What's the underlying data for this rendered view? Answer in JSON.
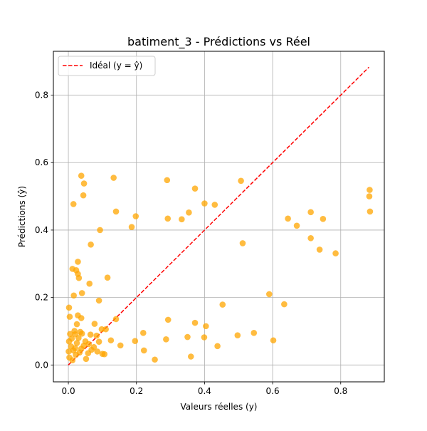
{
  "chart_data": {
    "type": "scatter",
    "title": "batiment_3 - Prédictions vs Réel",
    "xlabel": "Valeurs réelles (y)",
    "ylabel": "Prédictions (ŷ)",
    "xlim": [
      -0.044,
      0.928
    ],
    "ylim": [
      -0.05,
      0.93
    ],
    "xticks": [
      0.0,
      0.2,
      0.4,
      0.6,
      0.8
    ],
    "yticks": [
      0.0,
      0.2,
      0.4,
      0.6,
      0.8
    ],
    "xtick_labels": [
      "0.0",
      "0.2",
      "0.4",
      "0.6",
      "0.8"
    ],
    "ytick_labels": [
      "0.0",
      "0.2",
      "0.4",
      "0.6",
      "0.8"
    ],
    "grid": true,
    "legend": {
      "position": "top-left",
      "entries": [
        {
          "label": "Idéal (y = ŷ)",
          "style": "dashed-line",
          "color": "#ff0000"
        }
      ]
    },
    "ideal_line": {
      "x": [
        0.0,
        0.883
      ],
      "y": [
        0.0,
        0.883
      ],
      "color": "#ff0000",
      "dash": true
    },
    "points_color": "#ffa500",
    "points": [
      {
        "x": 0.038,
        "y": 0.561
      },
      {
        "x": 0.133,
        "y": 0.555
      },
      {
        "x": 0.046,
        "y": 0.538
      },
      {
        "x": 0.29,
        "y": 0.548
      },
      {
        "x": 0.507,
        "y": 0.546
      },
      {
        "x": 0.372,
        "y": 0.523
      },
      {
        "x": 0.044,
        "y": 0.503
      },
      {
        "x": 0.885,
        "y": 0.519
      },
      {
        "x": 0.884,
        "y": 0.5
      },
      {
        "x": 0.015,
        "y": 0.477
      },
      {
        "x": 0.4,
        "y": 0.479
      },
      {
        "x": 0.43,
        "y": 0.475
      },
      {
        "x": 0.14,
        "y": 0.455
      },
      {
        "x": 0.198,
        "y": 0.441
      },
      {
        "x": 0.354,
        "y": 0.452
      },
      {
        "x": 0.712,
        "y": 0.453
      },
      {
        "x": 0.886,
        "y": 0.455
      },
      {
        "x": 0.292,
        "y": 0.434
      },
      {
        "x": 0.333,
        "y": 0.432
      },
      {
        "x": 0.645,
        "y": 0.434
      },
      {
        "x": 0.748,
        "y": 0.433
      },
      {
        "x": 0.186,
        "y": 0.409
      },
      {
        "x": 0.671,
        "y": 0.413
      },
      {
        "x": 0.093,
        "y": 0.4
      },
      {
        "x": 0.712,
        "y": 0.376
      },
      {
        "x": 0.066,
        "y": 0.357
      },
      {
        "x": 0.512,
        "y": 0.361
      },
      {
        "x": 0.738,
        "y": 0.342
      },
      {
        "x": 0.785,
        "y": 0.331
      },
      {
        "x": 0.028,
        "y": 0.306
      },
      {
        "x": 0.012,
        "y": 0.285
      },
      {
        "x": 0.023,
        "y": 0.281
      },
      {
        "x": 0.028,
        "y": 0.27
      },
      {
        "x": 0.031,
        "y": 0.258
      },
      {
        "x": 0.115,
        "y": 0.259
      },
      {
        "x": 0.062,
        "y": 0.241
      },
      {
        "x": 0.04,
        "y": 0.213
      },
      {
        "x": 0.016,
        "y": 0.206
      },
      {
        "x": 0.59,
        "y": 0.21
      },
      {
        "x": 0.09,
        "y": 0.191
      },
      {
        "x": 0.453,
        "y": 0.179
      },
      {
        "x": 0.634,
        "y": 0.18
      },
      {
        "x": 0.002,
        "y": 0.17
      },
      {
        "x": 0.004,
        "y": 0.143
      },
      {
        "x": 0.028,
        "y": 0.147
      },
      {
        "x": 0.038,
        "y": 0.139
      },
      {
        "x": 0.14,
        "y": 0.136
      },
      {
        "x": 0.293,
        "y": 0.134
      },
      {
        "x": 0.372,
        "y": 0.125
      },
      {
        "x": 0.025,
        "y": 0.121
      },
      {
        "x": 0.077,
        "y": 0.122
      },
      {
        "x": 0.404,
        "y": 0.115
      },
      {
        "x": 0.098,
        "y": 0.106
      },
      {
        "x": 0.11,
        "y": 0.106
      },
      {
        "x": 0.018,
        "y": 0.101
      },
      {
        "x": 0.035,
        "y": 0.098
      },
      {
        "x": 0.04,
        "y": 0.093
      },
      {
        "x": 0.005,
        "y": 0.092
      },
      {
        "x": 0.02,
        "y": 0.091
      },
      {
        "x": 0.22,
        "y": 0.095
      },
      {
        "x": 0.545,
        "y": 0.095
      },
      {
        "x": 0.065,
        "y": 0.09
      },
      {
        "x": 0.083,
        "y": 0.087
      },
      {
        "x": 0.497,
        "y": 0.088
      },
      {
        "x": 0.35,
        "y": 0.083
      },
      {
        "x": 0.399,
        "y": 0.082
      },
      {
        "x": 0.03,
        "y": 0.08
      },
      {
        "x": 0.01,
        "y": 0.078
      },
      {
        "x": 0.287,
        "y": 0.076
      },
      {
        "x": 0.125,
        "y": 0.073
      },
      {
        "x": 0.196,
        "y": 0.071
      },
      {
        "x": 0.602,
        "y": 0.073
      },
      {
        "x": 0.002,
        "y": 0.07
      },
      {
        "x": 0.05,
        "y": 0.07
      },
      {
        "x": 0.09,
        "y": 0.069
      },
      {
        "x": 0.025,
        "y": 0.065
      },
      {
        "x": 0.06,
        "y": 0.062
      },
      {
        "x": 0.045,
        "y": 0.057
      },
      {
        "x": 0.153,
        "y": 0.058
      },
      {
        "x": 0.438,
        "y": 0.056
      },
      {
        "x": 0.008,
        "y": 0.055
      },
      {
        "x": 0.075,
        "y": 0.053
      },
      {
        "x": 0.02,
        "y": 0.05
      },
      {
        "x": 0.038,
        "y": 0.048
      },
      {
        "x": 0.068,
        "y": 0.045
      },
      {
        "x": 0.015,
        "y": 0.043
      },
      {
        "x": 0.001,
        "y": 0.04
      },
      {
        "x": 0.085,
        "y": 0.04
      },
      {
        "x": 0.222,
        "y": 0.043
      },
      {
        "x": 0.033,
        "y": 0.037
      },
      {
        "x": 0.058,
        "y": 0.035
      },
      {
        "x": 0.1,
        "y": 0.033
      },
      {
        "x": 0.106,
        "y": 0.032
      },
      {
        "x": 0.022,
        "y": 0.03
      },
      {
        "x": 0.36,
        "y": 0.025
      },
      {
        "x": 0.003,
        "y": 0.022
      },
      {
        "x": 0.052,
        "y": 0.018
      },
      {
        "x": 0.254,
        "y": 0.016
      },
      {
        "x": 0.012,
        "y": 0.014
      }
    ]
  }
}
